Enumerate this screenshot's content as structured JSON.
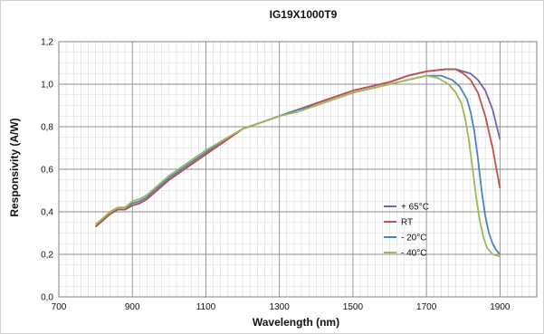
{
  "chart_data": {
    "type": "line",
    "title": "IG19X1000T9",
    "xlabel": "Wavelength (nm)",
    "ylabel": "Responsivity (A/W)",
    "xlim": [
      700,
      2000
    ],
    "ylim": [
      0,
      1.2
    ],
    "xticks": [
      "700",
      "900",
      "1100",
      "1300",
      "1500",
      "1700",
      "1900"
    ],
    "xtick_values": [
      700,
      900,
      1100,
      1300,
      1500,
      1700,
      1900
    ],
    "yticks": [
      "0,0",
      "0,2",
      "0,4",
      "0,6",
      "0,8",
      "1,0",
      "1,2"
    ],
    "ytick_values": [
      0,
      0.2,
      0.4,
      0.6,
      0.8,
      1.0,
      1.2
    ],
    "grid": true,
    "legend": "right-inside",
    "series": [
      {
        "name": "+ 65°C",
        "color": "#7b5ea7",
        "x": [
          800,
          820,
          840,
          860,
          880,
          900,
          920,
          940,
          960,
          980,
          1000,
          1050,
          1100,
          1150,
          1200,
          1250,
          1300,
          1350,
          1400,
          1450,
          1500,
          1550,
          1600,
          1650,
          1700,
          1750,
          1780,
          1800,
          1820,
          1840,
          1860,
          1880,
          1900
        ],
        "y": [
          0.33,
          0.36,
          0.39,
          0.41,
          0.41,
          0.43,
          0.44,
          0.46,
          0.49,
          0.52,
          0.55,
          0.61,
          0.67,
          0.73,
          0.79,
          0.82,
          0.85,
          0.88,
          0.91,
          0.94,
          0.97,
          0.99,
          1.01,
          1.04,
          1.06,
          1.07,
          1.07,
          1.06,
          1.05,
          1.02,
          0.97,
          0.88,
          0.74
        ]
      },
      {
        "name": "RT",
        "color": "#c0504d",
        "x": [
          800,
          820,
          840,
          860,
          880,
          900,
          920,
          940,
          960,
          980,
          1000,
          1050,
          1100,
          1150,
          1200,
          1250,
          1300,
          1350,
          1400,
          1450,
          1500,
          1550,
          1600,
          1650,
          1700,
          1750,
          1780,
          1800,
          1820,
          1840,
          1860,
          1880,
          1900
        ],
        "y": [
          0.33,
          0.36,
          0.39,
          0.41,
          0.41,
          0.43,
          0.44,
          0.46,
          0.49,
          0.52,
          0.55,
          0.61,
          0.67,
          0.73,
          0.79,
          0.82,
          0.85,
          0.88,
          0.91,
          0.94,
          0.97,
          0.99,
          1.01,
          1.04,
          1.06,
          1.07,
          1.07,
          1.05,
          1.02,
          0.96,
          0.85,
          0.7,
          0.51
        ]
      },
      {
        "name": "- 20°C",
        "color": "#4f81bd",
        "x": [
          800,
          820,
          840,
          860,
          880,
          900,
          920,
          940,
          960,
          980,
          1000,
          1050,
          1100,
          1150,
          1200,
          1250,
          1300,
          1350,
          1400,
          1450,
          1500,
          1550,
          1600,
          1650,
          1700,
          1740,
          1770,
          1790,
          1810,
          1820,
          1830,
          1840,
          1850,
          1860,
          1870,
          1880,
          1890,
          1900
        ],
        "y": [
          0.34,
          0.37,
          0.4,
          0.42,
          0.42,
          0.44,
          0.45,
          0.47,
          0.5,
          0.53,
          0.56,
          0.62,
          0.68,
          0.74,
          0.79,
          0.82,
          0.85,
          0.88,
          0.9,
          0.93,
          0.96,
          0.98,
          1.0,
          1.02,
          1.04,
          1.04,
          1.02,
          0.99,
          0.93,
          0.87,
          0.78,
          0.65,
          0.5,
          0.38,
          0.3,
          0.25,
          0.22,
          0.2
        ]
      },
      {
        "name": "- 40°C",
        "color": "#9bbb59",
        "x": [
          800,
          820,
          840,
          860,
          880,
          900,
          920,
          940,
          960,
          980,
          1000,
          1050,
          1100,
          1150,
          1200,
          1250,
          1300,
          1350,
          1400,
          1450,
          1500,
          1550,
          1600,
          1650,
          1700,
          1730,
          1760,
          1780,
          1795,
          1805,
          1815,
          1825,
          1835,
          1845,
          1855,
          1865,
          1880,
          1900
        ],
        "y": [
          0.34,
          0.37,
          0.4,
          0.42,
          0.42,
          0.45,
          0.46,
          0.48,
          0.51,
          0.54,
          0.57,
          0.63,
          0.69,
          0.74,
          0.79,
          0.82,
          0.85,
          0.87,
          0.9,
          0.93,
          0.96,
          0.98,
          1.0,
          1.02,
          1.04,
          1.03,
          1.0,
          0.96,
          0.91,
          0.84,
          0.74,
          0.61,
          0.47,
          0.36,
          0.28,
          0.23,
          0.2,
          0.19
        ]
      }
    ]
  }
}
